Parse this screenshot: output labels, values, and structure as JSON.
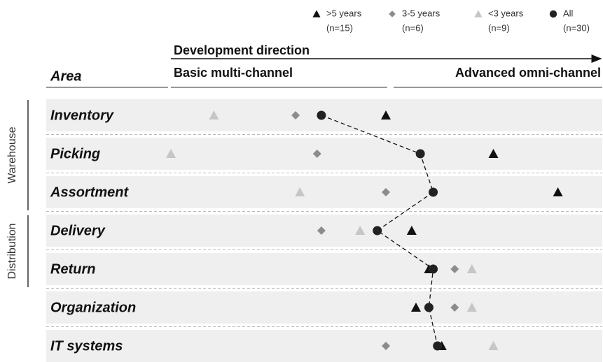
{
  "chart_data": {
    "type": "dotplot",
    "x_axis_label": "Development direction",
    "y_axis_label": "Area",
    "x_start_label": "Basic multi-channel",
    "x_end_label": "Advanced omni-channel",
    "categories": [
      "Inventory",
      "Picking",
      "Assortment",
      "Delivery",
      "Return",
      "Organization",
      "IT systems"
    ],
    "groups": [
      {
        "label": "Warehouse",
        "members": [
          "Inventory",
          "Picking",
          "Assortment"
        ]
      },
      {
        "label": "Distribution",
        "members": [
          "Delivery",
          "Return"
        ]
      }
    ],
    "xlim": [
      0,
      100
    ],
    "series": [
      {
        "name": ">5 years",
        "n_label": "(n=15)",
        "marker": "triangle",
        "color": "#111111",
        "values": [
          50,
          75,
          90,
          56,
          60,
          57,
          63
        ]
      },
      {
        "name": "3-5 years",
        "n_label": "(n=6)",
        "marker": "diamond",
        "color": "#8c8c8c",
        "values": [
          29,
          34,
          50,
          35,
          66,
          66,
          50
        ]
      },
      {
        "name": "<3 years",
        "n_label": "(n=9)",
        "marker": "triangle",
        "color": "#c6c6c6",
        "values": [
          10,
          0,
          30,
          44,
          70,
          70,
          75
        ]
      },
      {
        "name": "All",
        "n_label": "(n=30)",
        "marker": "circle",
        "color": "#222222",
        "connect": true,
        "values": [
          35,
          58,
          61,
          48,
          61,
          60,
          62
        ]
      }
    ]
  }
}
